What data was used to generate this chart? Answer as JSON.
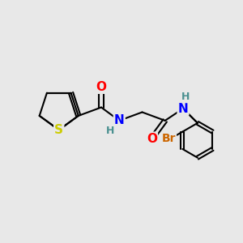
{
  "background_color": "#e8e8e8",
  "bond_color": "#000000",
  "bond_width": 1.5,
  "atom_colors": {
    "S": "#cccc00",
    "N": "#0000ff",
    "O": "#ff0000",
    "Br": "#cc6600",
    "H": "#4a9090",
    "C": "#000000"
  },
  "font_size": 11,
  "fig_width": 3.0,
  "fig_height": 3.0,
  "dpi": 100
}
